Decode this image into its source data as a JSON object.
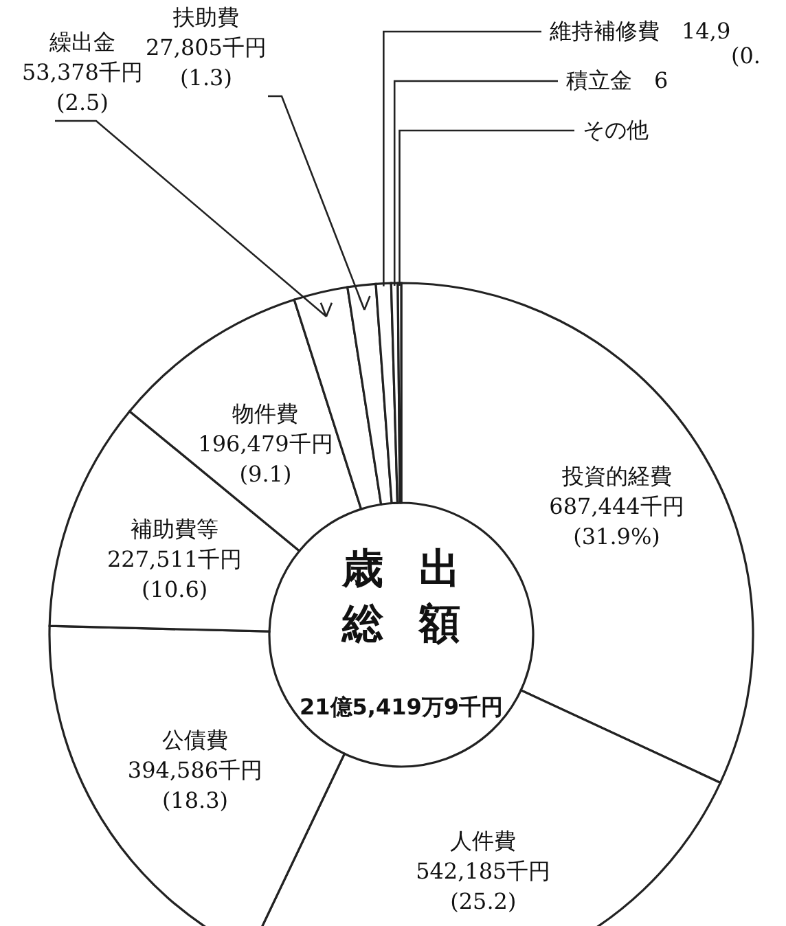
{
  "chart_data": {
    "type": "donut",
    "title": "歳出総額",
    "subtitle": "21億5,419万9千円",
    "categories": [
      "投資的経費",
      "人件費",
      "公債費",
      "補助費等",
      "物件費",
      "繰出金",
      "扶助費",
      "維持補修費",
      "積立金",
      "その他"
    ],
    "values": [
      687444,
      542185,
      394586,
      227511,
      196479,
      53378,
      27805,
      14950,
      6500,
      3361
    ],
    "value_labels": [
      "687,444千円\n(31.9%)",
      "542,185千円\n(25.2)",
      "394,586千円\n(18.3)",
      "227,511千円\n(10.6)",
      "196,479千円\n(9.1)",
      "53,378千円\n(2.5)",
      "27,805千円\n(1.3)",
      null,
      null,
      null
    ],
    "annotations": [
      "14,9\n(0.",
      "6"
    ],
    "colors": [
      "#ffffff",
      "#ffffff",
      "#ffffff",
      "#ffffff",
      "#ffffff",
      "#ffffff",
      "#ffffff",
      "#ffffff",
      "#ffffff",
      "#ffffff"
    ]
  }
}
